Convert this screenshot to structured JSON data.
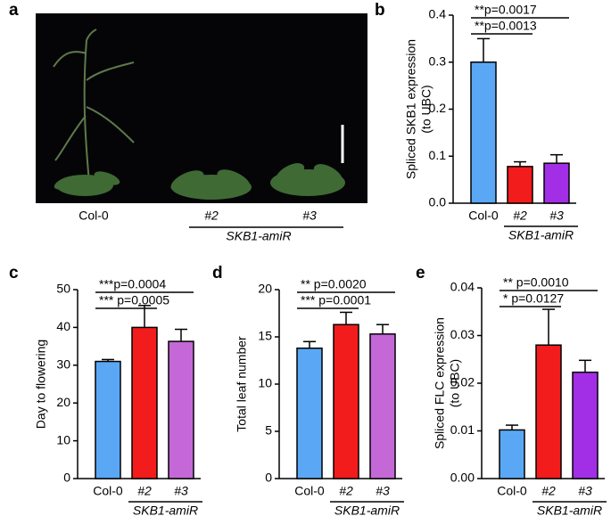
{
  "photo": {
    "panel": "a",
    "labels": [
      "Col-0",
      "#2",
      "#3"
    ],
    "group": "SKB1-amiR"
  },
  "chart_data": [
    {
      "type": "bar",
      "panel": "b",
      "ylabel": [
        "Spliced SKB1 expression",
        "(to UBC)"
      ],
      "categories": [
        "Col-0",
        "#2",
        "#3"
      ],
      "group": "SKB1-amiR",
      "values": [
        0.3,
        0.078,
        0.085
      ],
      "errors": [
        0.05,
        0.01,
        0.018
      ],
      "colors": [
        "#5aa8f5",
        "#f21c1c",
        "#a22ee6"
      ],
      "ylim": [
        0,
        0.4
      ],
      "yticks": [
        {
          "value": 0,
          "label": "0.0"
        },
        0.1,
        0.2,
        0.3,
        0.4
      ],
      "annotations": [
        "**p=0.0017",
        "**p=0.0013"
      ]
    },
    {
      "type": "bar",
      "panel": "c",
      "ylabel": [
        "Day to flowering"
      ],
      "categories": [
        "Col-0",
        "#2",
        "#3"
      ],
      "group": "SKB1-amiR",
      "values": [
        31,
        40,
        36.3
      ],
      "errors": [
        0.5,
        5.8,
        3.2
      ],
      "colors": [
        "#5aa8f5",
        "#f21c1c",
        "#c468d8"
      ],
      "ylim": [
        0,
        50
      ],
      "yticks": [
        0,
        10,
        20,
        30,
        40,
        50
      ],
      "annotations": [
        "***p=0.0004",
        "*** p=0.0005"
      ]
    },
    {
      "type": "bar",
      "panel": "d",
      "ylabel": [
        "Total leaf number"
      ],
      "categories": [
        "Col-0",
        "#2",
        "#3"
      ],
      "group": "SKB1-amiR",
      "values": [
        13.8,
        16.3,
        15.3
      ],
      "errors": [
        0.7,
        1.3,
        1.0
      ],
      "colors": [
        "#5aa8f5",
        "#f21c1c",
        "#c468d8"
      ],
      "ylim": [
        0,
        20
      ],
      "yticks": [
        0,
        5,
        10,
        15,
        20
      ],
      "annotations": [
        "** p=0.0020",
        "*** p=0.0001"
      ]
    },
    {
      "type": "bar",
      "panel": "e",
      "ylabel": [
        "Spliced FLC expression",
        "(to UBC)"
      ],
      "categories": [
        "Col-0",
        "#2",
        "#3"
      ],
      "group": "SKB1-amiR",
      "values": [
        0.0102,
        0.028,
        0.0223
      ],
      "errors": [
        0.001,
        0.0075,
        0.0025
      ],
      "colors": [
        "#5aa8f5",
        "#f21c1c",
        "#a22ee6"
      ],
      "ylim": [
        0,
        0.04
      ],
      "yticks": [
        {
          "value": 0,
          "label": "0.00"
        },
        {
          "value": 0.01,
          "label": "0.01"
        },
        {
          "value": 0.02,
          "label": "0.02"
        },
        {
          "value": 0.03,
          "label": "0.03"
        },
        {
          "value": 0.04,
          "label": "0.04"
        }
      ],
      "annotations": [
        "** p=0.0010",
        "* p=0.0127"
      ]
    }
  ]
}
